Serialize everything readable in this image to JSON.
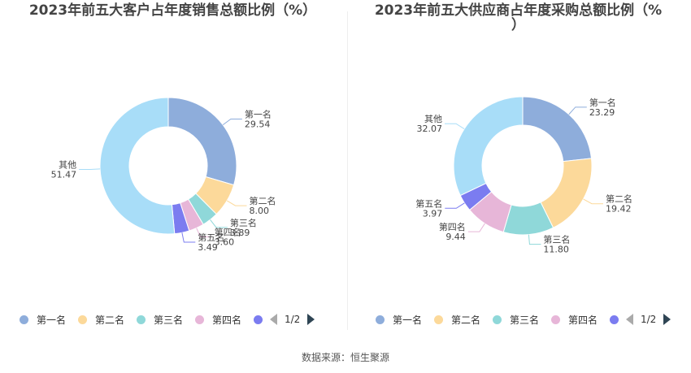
{
  "source": "数据来源：恒生聚源",
  "colors": {
    "palette": [
      "#8eaddb",
      "#fcd99a",
      "#8fd8d9",
      "#e7b6d8",
      "#7b7cf0",
      "#a8ddf8"
    ]
  },
  "chart_data": [
    {
      "type": "pie",
      "title_lines": [
        "2023年前五大客户占年度销售总额比例（%）"
      ],
      "categories": [
        "第一名",
        "第二名",
        "第三名",
        "第四名",
        "第五名",
        "其他"
      ],
      "values": [
        29.54,
        8.0,
        3.89,
        3.6,
        3.49,
        51.47
      ],
      "value_labels": [
        "29.54",
        "8.00",
        "3.89",
        "3.60",
        "3.49",
        "51.47"
      ],
      "legend": {
        "position": "bottom",
        "visible_items": [
          "第一名",
          "第二名",
          "第三名",
          "第四名",
          ""
        ],
        "page": "1/2"
      }
    },
    {
      "type": "pie",
      "title_lines": [
        "2023年前五大供应商占年度采购总额比例（%",
        "）"
      ],
      "categories": [
        "第一名",
        "第二名",
        "第三名",
        "第四名",
        "第五名",
        "其他"
      ],
      "values": [
        23.29,
        19.42,
        11.8,
        9.44,
        3.97,
        32.07
      ],
      "value_labels": [
        "23.29",
        "19.42",
        "11.80",
        "9.44",
        "3.97",
        "32.07"
      ],
      "legend": {
        "position": "bottom",
        "visible_items": [
          "第一名",
          "第二名",
          "第三名",
          "第四名",
          ""
        ],
        "page": "1/2"
      }
    }
  ]
}
